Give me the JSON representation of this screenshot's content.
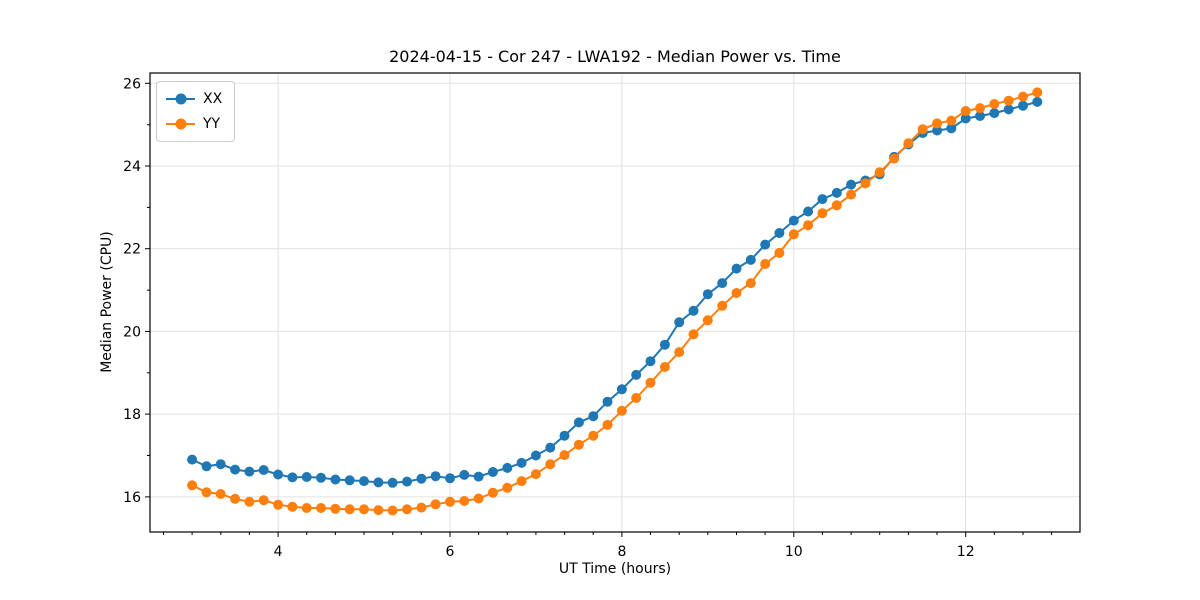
{
  "figure": {
    "background": "#ffffff"
  },
  "chart_data": {
    "type": "line",
    "title": "2024-04-15 - Cor 247 - LWA192 - Median Power vs. Time",
    "xlabel": "UT Time (hours)",
    "ylabel": "Median Power (CPU)",
    "xlim": [
      2.51,
      13.33
    ],
    "ylim": [
      15.15,
      26.25
    ],
    "xticks": [
      4,
      6,
      8,
      10,
      12
    ],
    "yticks": [
      16,
      18,
      20,
      22,
      24,
      26
    ],
    "x_minor_step": 0.3333,
    "y_minor_ticks": [
      17,
      19,
      21,
      23,
      25
    ],
    "grid": true,
    "grid_color": "#e0e0e0",
    "legend_position": "upper left",
    "x": [
      3.0,
      3.167,
      3.333,
      3.5,
      3.667,
      3.833,
      4.0,
      4.167,
      4.333,
      4.5,
      4.667,
      4.833,
      5.0,
      5.167,
      5.333,
      5.5,
      5.667,
      5.833,
      6.0,
      6.167,
      6.333,
      6.5,
      6.667,
      6.833,
      7.0,
      7.167,
      7.333,
      7.5,
      7.667,
      7.833,
      8.0,
      8.167,
      8.333,
      8.5,
      8.667,
      8.833,
      9.0,
      9.167,
      9.333,
      9.5,
      9.667,
      9.833,
      10.0,
      10.167,
      10.333,
      10.5,
      10.667,
      10.833,
      11.0,
      11.167,
      11.333,
      11.5,
      11.667,
      11.833,
      12.0,
      12.167,
      12.333,
      12.5,
      12.667,
      12.833
    ],
    "series": [
      {
        "name": "XX",
        "color": "#1f77b4",
        "values": [
          16.9,
          16.74,
          16.79,
          16.66,
          16.61,
          16.65,
          16.54,
          16.47,
          16.48,
          16.46,
          16.42,
          16.4,
          16.38,
          16.35,
          16.34,
          16.37,
          16.44,
          16.5,
          16.45,
          16.53,
          16.49,
          16.6,
          16.7,
          16.82,
          17.0,
          17.19,
          17.48,
          17.8,
          17.95,
          18.3,
          18.6,
          18.95,
          19.28,
          19.68,
          20.22,
          20.5,
          20.9,
          21.17,
          21.52,
          21.73,
          22.1,
          22.38,
          22.68,
          22.9,
          23.2,
          23.35,
          23.55,
          23.65,
          23.8,
          24.22,
          24.52,
          24.8,
          24.86,
          24.91,
          25.15,
          25.21,
          25.28,
          25.37,
          25.46,
          25.55
        ]
      },
      {
        "name": "YY",
        "color": "#ff7f0e",
        "values": [
          16.28,
          16.11,
          16.07,
          15.95,
          15.88,
          15.92,
          15.81,
          15.76,
          15.73,
          15.73,
          15.71,
          15.7,
          15.7,
          15.68,
          15.67,
          15.7,
          15.74,
          15.82,
          15.88,
          15.9,
          15.96,
          16.1,
          16.22,
          16.38,
          16.55,
          16.79,
          17.01,
          17.26,
          17.48,
          17.74,
          18.08,
          18.39,
          18.76,
          19.14,
          19.5,
          19.93,
          20.27,
          20.62,
          20.93,
          21.17,
          21.63,
          21.9,
          22.35,
          22.57,
          22.86,
          23.05,
          23.31,
          23.58,
          23.85,
          24.18,
          24.55,
          24.89,
          25.03,
          25.1,
          25.33,
          25.4,
          25.5,
          25.58,
          25.68,
          25.78
        ]
      }
    ]
  }
}
